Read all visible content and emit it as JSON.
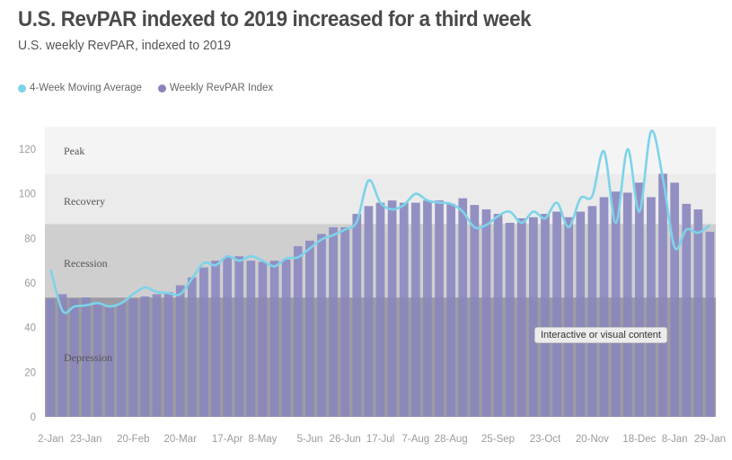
{
  "header": {
    "title": "U.S. RevPAR indexed to 2019 increased for a third week",
    "subtitle": "U.S. weekly RevPAR, indexed to 2019"
  },
  "legend": [
    {
      "label": "4-Week Moving Average",
      "color": "#7dd3ea"
    },
    {
      "label": "Weekly RevPAR Index",
      "color": "#8886b8"
    }
  ],
  "tooltip": "Interactive or visual content",
  "chart_data": {
    "type": "bar",
    "title": "U.S. RevPAR indexed to 2019 increased for a third week",
    "subtitle": "U.S. weekly RevPAR, indexed to 2019",
    "xlabel": "",
    "ylabel": "",
    "ylim": [
      0,
      130
    ],
    "yticks": [
      0,
      20,
      40,
      60,
      80,
      100,
      120
    ],
    "grid": false,
    "legend_position": "top-left",
    "x_tick_labels": [
      {
        "index": 0,
        "label": "2-Jan"
      },
      {
        "index": 3,
        "label": "23-Jan"
      },
      {
        "index": 7,
        "label": "20-Feb"
      },
      {
        "index": 11,
        "label": "20-Mar"
      },
      {
        "index": 15,
        "label": "17-Apr"
      },
      {
        "index": 18,
        "label": "8-May"
      },
      {
        "index": 22,
        "label": "5-Jun"
      },
      {
        "index": 25,
        "label": "26-Jun"
      },
      {
        "index": 28,
        "label": "17-Jul"
      },
      {
        "index": 31,
        "label": "7-Aug"
      },
      {
        "index": 34,
        "label": "28-Aug"
      },
      {
        "index": 38,
        "label": "25-Sep"
      },
      {
        "index": 42,
        "label": "23-Oct"
      },
      {
        "index": 46,
        "label": "20-Nov"
      },
      {
        "index": 50,
        "label": "18-Dec"
      },
      {
        "index": 53,
        "label": "8-Jan"
      },
      {
        "index": 56,
        "label": "29-Jan"
      }
    ],
    "bands": [
      {
        "label": "Depression",
        "from": 0,
        "to": 53.5,
        "color": "#a6a6a6"
      },
      {
        "label": "Recession",
        "from": 53.5,
        "to": 86.5,
        "color": "#cfcfcf"
      },
      {
        "label": "Recovery",
        "from": 86.5,
        "to": 109,
        "color": "#ebebeb"
      },
      {
        "label": "Peak",
        "from": 109,
        "to": 130,
        "color": "#f4f4f4"
      }
    ],
    "series": [
      {
        "name": "Weekly RevPAR Index",
        "type": "bar",
        "color": "#8886b8",
        "values": [
          53,
          55,
          53,
          53.5,
          51,
          50,
          51,
          53,
          54,
          55,
          56,
          59,
          62.5,
          67,
          70,
          71.5,
          72,
          70,
          69.5,
          70,
          70.5,
          76.5,
          79,
          82,
          85,
          85,
          91,
          94.5,
          96,
          97,
          96,
          96,
          97,
          97,
          95.5,
          98,
          95,
          93,
          91,
          87,
          89,
          89.5,
          91,
          92,
          89.5,
          92,
          94.5,
          98.5,
          101,
          100.5,
          105,
          98.5,
          109,
          105,
          95.5,
          93,
          83
        ]
      },
      {
        "name": "4-Week Moving Average",
        "type": "line",
        "color": "#7dd3ea",
        "values": [
          66,
          47.5,
          49.5,
          50,
          51,
          49.5,
          51,
          55,
          58,
          56,
          55.5,
          55,
          62,
          69,
          68,
          72,
          70,
          72,
          70,
          67.5,
          71,
          71.5,
          75.5,
          79.5,
          81.5,
          84,
          87.5,
          106,
          96,
          93,
          95,
          100,
          97,
          96,
          95.5,
          92,
          85,
          86,
          90,
          92,
          87,
          92,
          89,
          96,
          85,
          98,
          99,
          119,
          87,
          120,
          92,
          128,
          107,
          76,
          84,
          82.5,
          86
        ]
      }
    ]
  }
}
